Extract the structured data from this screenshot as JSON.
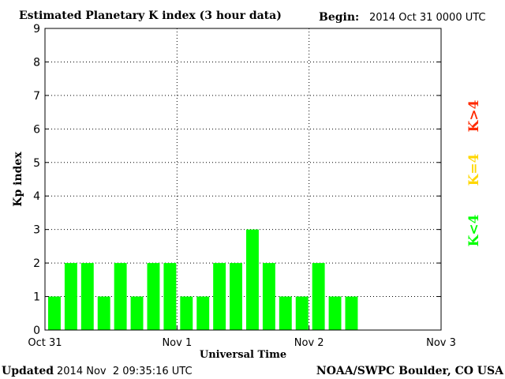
{
  "title": "Estimated Planetary K index (3 hour data)",
  "begin_label": "Begin:",
  "begin_value": "2014 Oct 31 0000 UTC",
  "updated_label": "Updated",
  "updated_value": "2014 Nov  2 09:35:16 UTC",
  "source": "NOAA/SWPC Boulder, CO USA",
  "legend": {
    "above": "K>4",
    "equal": "K=4",
    "below": "K<4"
  },
  "colors": {
    "below": "#00ff00",
    "equal": "#ffd700",
    "above": "#ff2a00",
    "axis": "#000000"
  },
  "chart_data": {
    "type": "bar",
    "title": "Estimated Planetary K index (3 hour data)",
    "xlabel": "Universal Time",
    "ylabel": "Kp index",
    "ylim": [
      0,
      9
    ],
    "yticks": [
      "0",
      "1",
      "2",
      "3",
      "4",
      "5",
      "6",
      "7",
      "8",
      "9"
    ],
    "xticks": [
      "Oct 31",
      "Nov 1",
      "Nov 2",
      "Nov 3"
    ],
    "slots_total": 24,
    "values": [
      1,
      2,
      2,
      1,
      2,
      1,
      2,
      2,
      1,
      1,
      2,
      2,
      3,
      2,
      1,
      1,
      2,
      1,
      1
    ],
    "grid": true
  }
}
